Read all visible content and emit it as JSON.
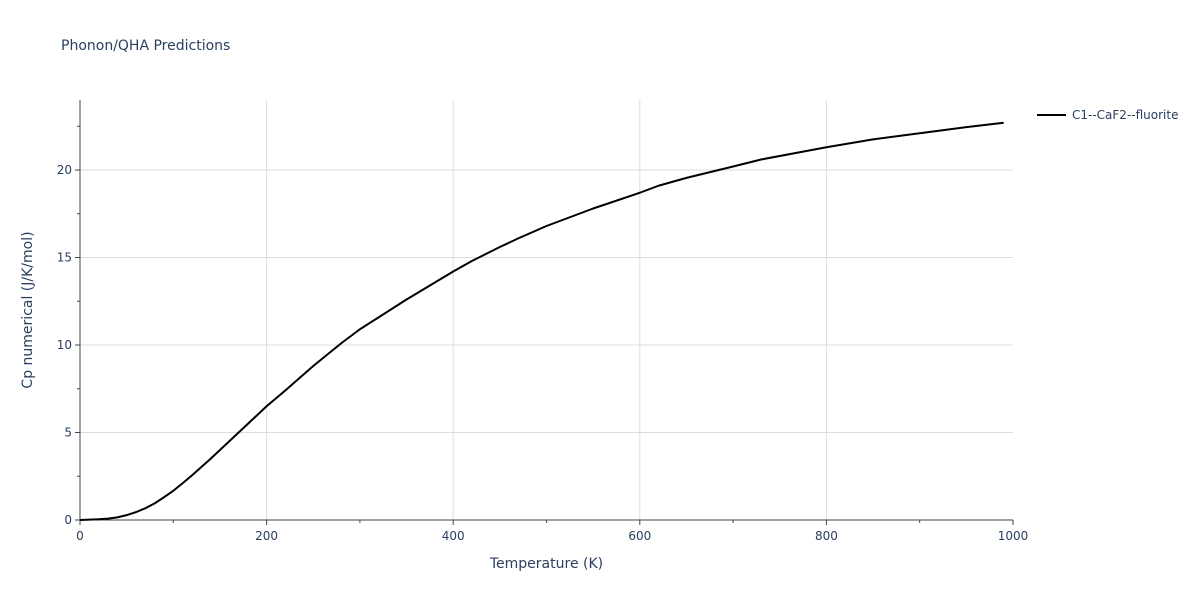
{
  "chart_data": {
    "type": "line",
    "title": "Phonon/QHA Predictions",
    "xlabel": "Temperature (K)",
    "ylabel": "Cp numerical (J/K/mol)",
    "xlim": [
      0,
      1000
    ],
    "ylim": [
      0,
      24
    ],
    "x_ticks": [
      0,
      200,
      400,
      600,
      800,
      1000
    ],
    "y_ticks": [
      0,
      5,
      10,
      15,
      20
    ],
    "x_minor_ticks": [
      100,
      300,
      500,
      700,
      900
    ],
    "y_minor_ticks": [
      2.5,
      7.5,
      12.5,
      17.5,
      22.5
    ],
    "grid": true,
    "legend_position": "top-right",
    "series": [
      {
        "name": "C1--CaF2--fluorite",
        "color": "#000000",
        "x": [
          0,
          10,
          20,
          30,
          40,
          50,
          60,
          70,
          80,
          90,
          100,
          110,
          120,
          140,
          160,
          180,
          200,
          220,
          250,
          280,
          300,
          350,
          400,
          420,
          450,
          470,
          500,
          550,
          600,
          620,
          650,
          700,
          730,
          800,
          850,
          900,
          950,
          990
        ],
        "y": [
          0,
          0.02,
          0.04,
          0.08,
          0.15,
          0.28,
          0.45,
          0.67,
          0.95,
          1.3,
          1.67,
          2.1,
          2.55,
          3.5,
          4.5,
          5.5,
          6.5,
          7.4,
          8.8,
          10.1,
          10.9,
          12.6,
          14.2,
          14.8,
          15.6,
          16.1,
          16.8,
          17.8,
          18.7,
          19.1,
          19.55,
          20.2,
          20.6,
          21.3,
          21.75,
          22.1,
          22.45,
          22.7
        ]
      }
    ]
  }
}
